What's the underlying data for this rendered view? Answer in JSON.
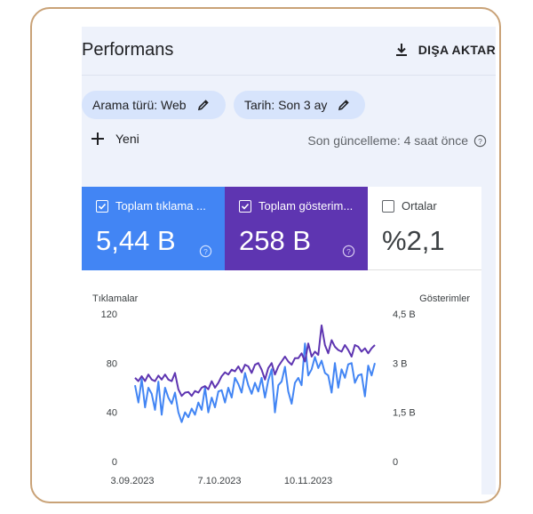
{
  "header": {
    "title": "Performans",
    "export_label": "DIŞA AKTAR"
  },
  "filters": [
    {
      "label": "Arama türü: Web"
    },
    {
      "label": "Tarih: Son 3 ay"
    }
  ],
  "actions": {
    "new_label": "Yeni",
    "last_update": "Son güncelleme: 4 saat önce"
  },
  "metrics": [
    {
      "label": "Toplam tıklama ...",
      "value": "5,44 B",
      "checked": true,
      "color": "#4285f4"
    },
    {
      "label": "Toplam gösterim...",
      "value": "258 B",
      "checked": true,
      "color": "#5e35b1"
    },
    {
      "label": "Ortalar",
      "value": "%2,1",
      "checked": false,
      "color": "#ffffff"
    }
  ],
  "chart_data": {
    "type": "line",
    "left_axis_label": "Tıklamalar",
    "right_axis_label": "Gösterimler",
    "left_ticks": [
      "120",
      "80",
      "40",
      "0"
    ],
    "right_ticks": [
      "4,5 B",
      "3 B",
      "1,5 B",
      "0"
    ],
    "x_ticks": [
      "3.09.2023",
      "7.10.2023",
      "10.11.2023"
    ],
    "left_ylim": [
      0,
      120
    ],
    "right_ylim": [
      0,
      4.5
    ],
    "colors": {
      "clicks": "#4285f4",
      "impressions": "#5e35b1"
    },
    "series": [
      {
        "name": "Tıklamalar",
        "axis": "left",
        "values": [
          62,
          48,
          67,
          44,
          60,
          55,
          42,
          65,
          38,
          60,
          52,
          47,
          56,
          40,
          32,
          40,
          36,
          43,
          38,
          48,
          42,
          60,
          40,
          52,
          44,
          57,
          58,
          48,
          60,
          52,
          68,
          63,
          56,
          72,
          62,
          55,
          64,
          57,
          68,
          52,
          66,
          75,
          40,
          62,
          65,
          77,
          57,
          47,
          64,
          68,
          62,
          96,
          70,
          75,
          85,
          76,
          82,
          72,
          70,
          56,
          80,
          60,
          75,
          68,
          79,
          80,
          64,
          70,
          71,
          53,
          78,
          70,
          80
        ]
      },
      {
        "name": "Gösterimler",
        "axis": "right",
        "values": [
          2.55,
          2.45,
          2.6,
          2.45,
          2.65,
          2.5,
          2.45,
          2.62,
          2.5,
          2.65,
          2.5,
          2.45,
          2.7,
          2.2,
          2.0,
          2.1,
          2.12,
          2.0,
          2.15,
          2.1,
          2.25,
          2.3,
          2.2,
          2.45,
          2.25,
          2.4,
          2.6,
          2.72,
          2.65,
          2.8,
          2.75,
          2.9,
          2.72,
          2.95,
          2.9,
          2.7,
          2.95,
          3.0,
          2.8,
          2.5,
          2.85,
          3.0,
          2.65,
          2.9,
          3.05,
          3.2,
          3.05,
          2.95,
          3.15,
          3.15,
          3.3,
          3.05,
          3.6,
          3.2,
          3.35,
          3.25,
          4.15,
          3.55,
          3.3,
          3.7,
          3.5,
          3.4,
          3.35,
          3.55,
          3.4,
          3.2,
          3.55,
          3.5,
          3.35,
          3.45,
          3.3,
          3.45,
          3.55
        ]
      }
    ]
  }
}
